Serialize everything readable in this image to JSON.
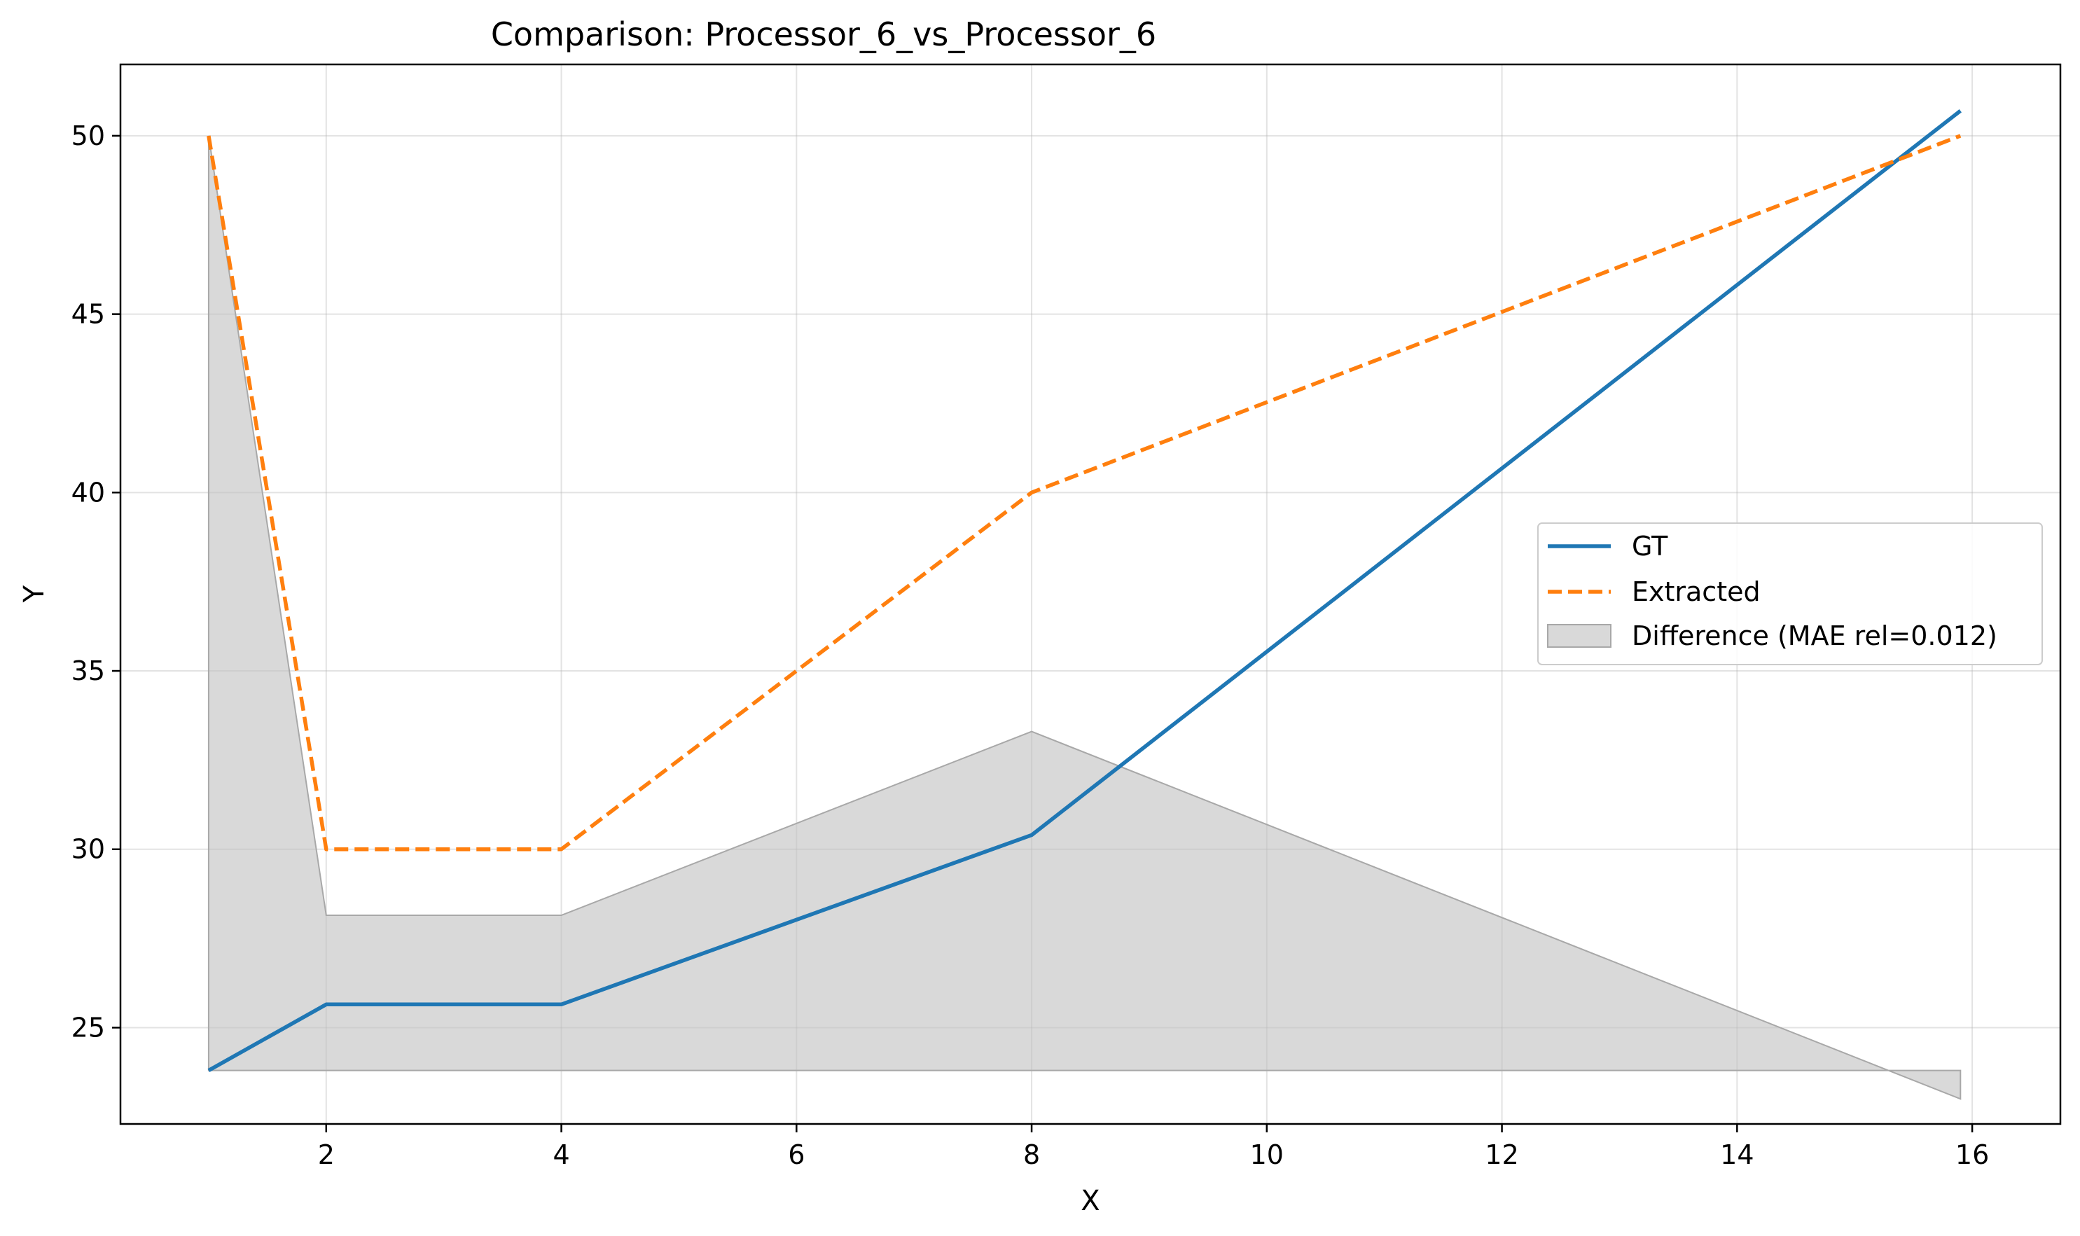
{
  "chart_data": {
    "type": "line",
    "title": "Comparison: Processor_6_vs_Processor_6",
    "xlabel": "X",
    "ylabel": "Y",
    "xlim": [
      0.25,
      16.75
    ],
    "ylim": [
      22.3,
      52.0
    ],
    "xticks": [
      2,
      4,
      6,
      8,
      10,
      12,
      14,
      16
    ],
    "yticks": [
      25,
      30,
      35,
      40,
      45,
      50
    ],
    "grid": true,
    "legend_position": "center-right",
    "series": [
      {
        "name": "GT",
        "style": "solid",
        "color": "#1f77b4",
        "x": [
          1,
          2,
          4,
          8,
          15.9
        ],
        "y": [
          23.8,
          25.65,
          25.65,
          30.4,
          50.7
        ]
      },
      {
        "name": "Extracted",
        "style": "dashed",
        "color": "#ff7f0e",
        "x": [
          1,
          2,
          4,
          8,
          15.9
        ],
        "y": [
          50.0,
          30.0,
          30.0,
          40.0,
          50.0
        ]
      }
    ],
    "fill": {
      "name": "Difference (MAE rel=0.012)",
      "color": "#bfbfbf",
      "baseline": 23.8,
      "x": [
        1,
        2,
        4,
        8,
        15.9
      ],
      "y": [
        50.0,
        28.15,
        28.15,
        33.3,
        23.0
      ]
    }
  }
}
